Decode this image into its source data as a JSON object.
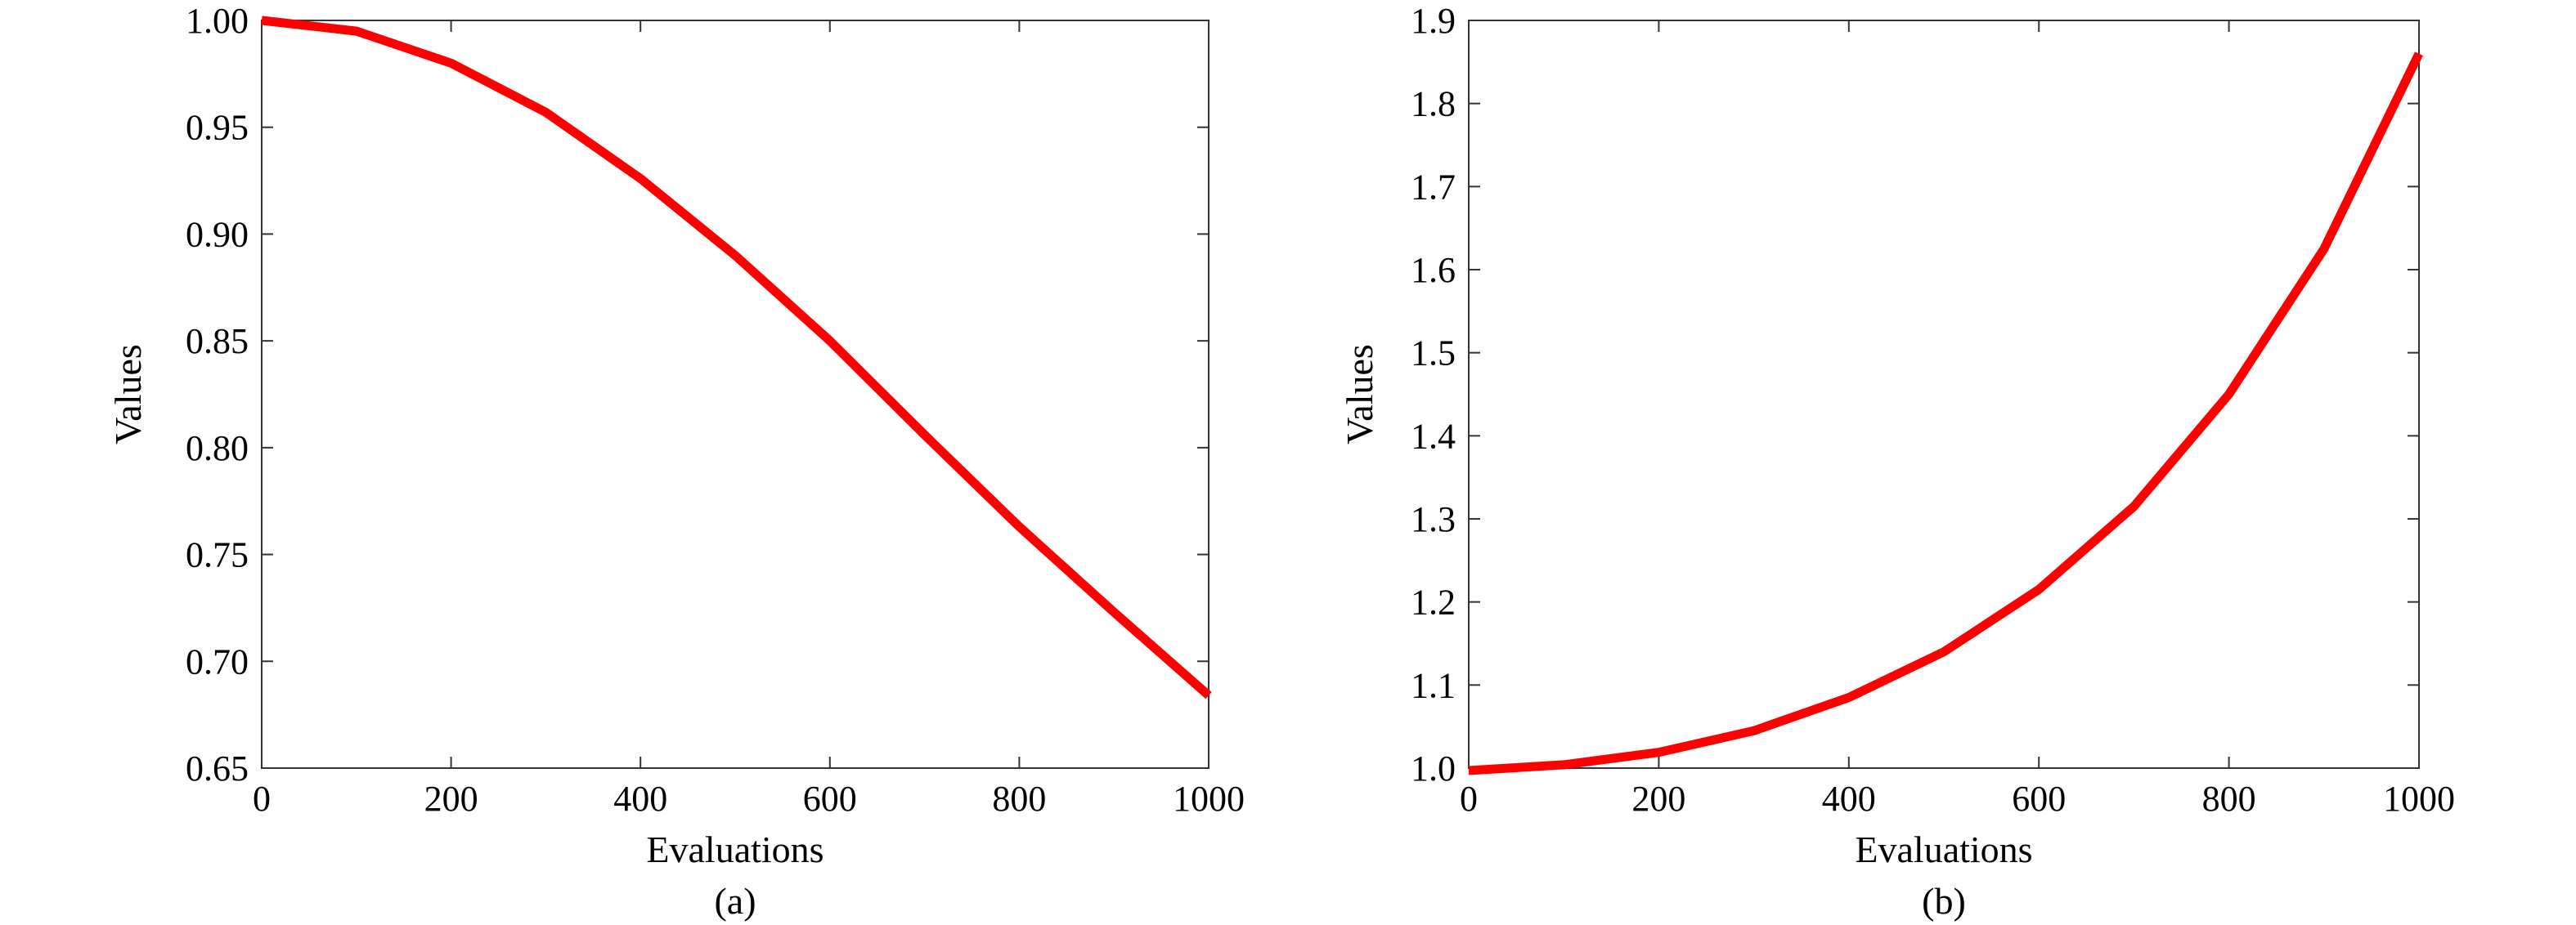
{
  "chart_data": [
    {
      "type": "line",
      "caption": "(a)",
      "xlabel": "Evaluations",
      "ylabel": "Values",
      "xlim": [
        0,
        1000
      ],
      "ylim": [
        0.65,
        1.0
      ],
      "xticks": [
        "0",
        "200",
        "400",
        "600",
        "800",
        "1000"
      ],
      "yticks": [
        "0.65",
        "0.70",
        "0.75",
        "0.80",
        "0.85",
        "0.90",
        "0.95",
        "1.00"
      ],
      "grid": false,
      "color": "#ff0000",
      "series": [
        {
          "x": [
            0,
            100,
            200,
            300,
            400,
            500,
            600,
            700,
            800,
            900,
            1000
          ],
          "y": [
            1.0,
            0.995,
            0.98,
            0.957,
            0.926,
            0.89,
            0.85,
            0.806,
            0.763,
            0.723,
            0.684
          ]
        }
      ]
    },
    {
      "type": "line",
      "caption": "(b)",
      "xlabel": "Evaluations",
      "ylabel": "Values",
      "xlim": [
        0,
        1000
      ],
      "ylim": [
        1.0,
        1.9
      ],
      "xticks": [
        "0",
        "200",
        "400",
        "600",
        "800",
        "1000"
      ],
      "yticks": [
        "1.0",
        "1.1",
        "1.2",
        "1.3",
        "1.4",
        "1.5",
        "1.6",
        "1.7",
        "1.8",
        "1.9"
      ],
      "grid": false,
      "color": "#ff0000",
      "series": [
        {
          "x": [
            0,
            100,
            200,
            300,
            400,
            500,
            600,
            700,
            800,
            900,
            1000
          ],
          "y": [
            0.997,
            1.004,
            1.019,
            1.045,
            1.085,
            1.14,
            1.215,
            1.315,
            1.45,
            1.625,
            1.86
          ]
        }
      ]
    }
  ]
}
